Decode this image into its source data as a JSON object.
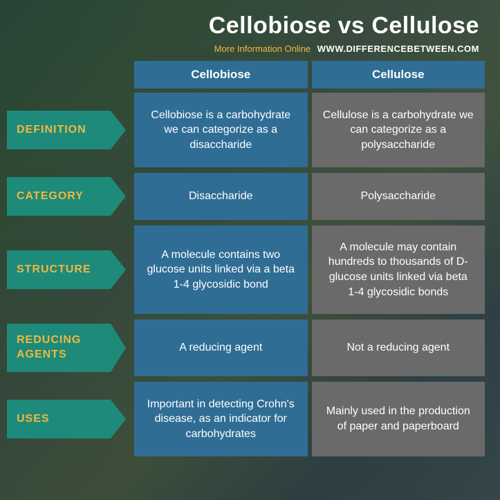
{
  "header": {
    "title": "Cellobiose vs Cellulose",
    "subtitle_label": "More Information Online",
    "subtitle_link": "WWW.DIFFERENCEBETWEEN.COM"
  },
  "columns": {
    "a": "Cellobiose",
    "b": "Cellulose"
  },
  "rows": [
    {
      "label": "DEFINITION",
      "a": "Cellobiose is a carbohydrate we can categorize as a disaccharide",
      "b": "Cellulose is a carbohydrate we can categorize as a polysaccharide",
      "h": "h-tall"
    },
    {
      "label": "CATEGORY",
      "a": "Disaccharide",
      "b": "Polysaccharide",
      "h": "h-med"
    },
    {
      "label": "STRUCTURE",
      "a": "A molecule contains two glucose units linked via a beta 1-4 glycosidic bond",
      "b": "A molecule may contain hundreds to thousands of D-glucose units linked via beta 1-4 glycosidic bonds",
      "h": "h-big"
    },
    {
      "label": "REDUCING AGENTS",
      "a": "A reducing agent",
      "b": "Not a reducing agent",
      "h": "h-sm"
    },
    {
      "label": "USES",
      "a": "Important in detecting Crohn's disease, as an indicator for carbohydrates",
      "b": "Mainly used in the production of paper and paperboard",
      "h": "h-tall"
    }
  ],
  "colors": {
    "teal": "#1e8a7a",
    "blue": "#2f6d95",
    "gray": "#6a6a6a",
    "gold": "#f0b840",
    "white": "#ffffff"
  }
}
